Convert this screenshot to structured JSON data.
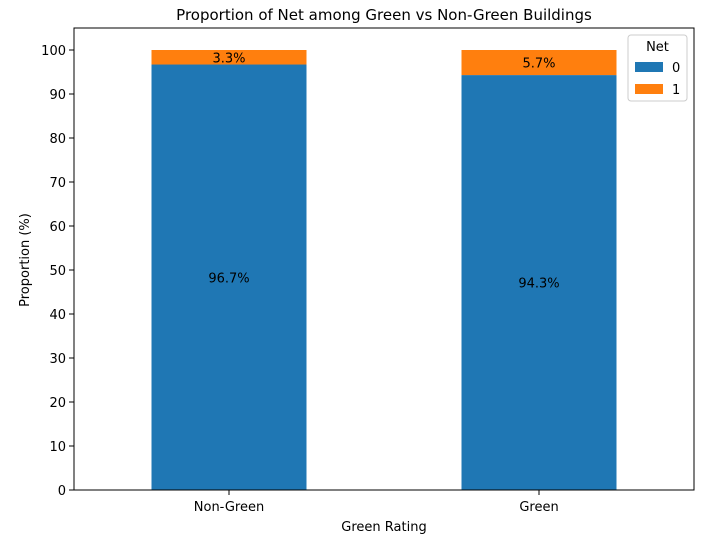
{
  "chart_data": {
    "type": "bar",
    "stacked": true,
    "title": "Proportion of Net among Green vs Non-Green Buildings",
    "xlabel": "Green Rating",
    "ylabel": "Proportion (%)",
    "categories": [
      "Non-Green",
      "Green"
    ],
    "ylim": [
      0,
      105
    ],
    "yticks": [
      0,
      10,
      20,
      30,
      40,
      50,
      60,
      70,
      80,
      90,
      100
    ],
    "grid": false,
    "legend": {
      "title": "Net",
      "placement": "top-right"
    },
    "series": [
      {
        "name": "0",
        "color": "#1f77b4",
        "values": [
          96.7,
          94.3
        ],
        "labels": [
          "96.7%",
          "94.3%"
        ]
      },
      {
        "name": "1",
        "color": "#ff7f0e",
        "values": [
          3.3,
          5.7
        ],
        "labels": [
          "3.3%",
          "5.7%"
        ]
      }
    ]
  }
}
